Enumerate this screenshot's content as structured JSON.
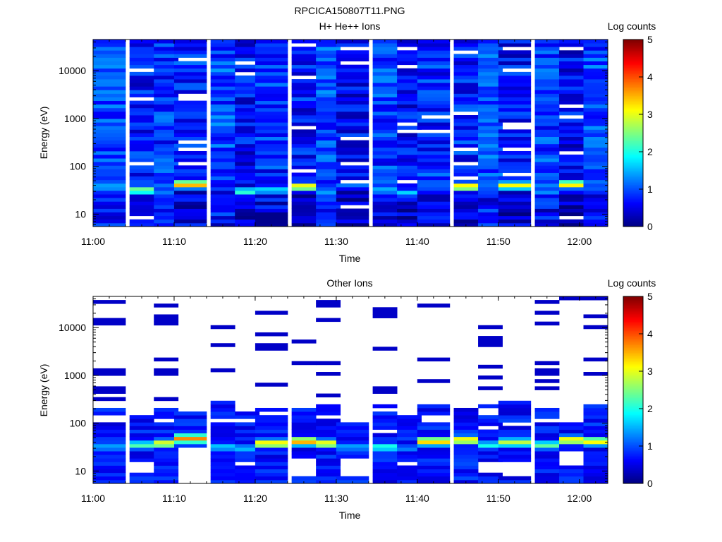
{
  "title": "RPCICA150807T11.PNG",
  "colormap": [
    "#00007f",
    "#0000ff",
    "#007fff",
    "#00ffff",
    "#7fff7f",
    "#ffff00",
    "#ff7f00",
    "#ff0000",
    "#7f0000"
  ],
  "chart_data": [
    {
      "type": "heatmap",
      "title": "H+ He++ Ions",
      "xlabel": "Time",
      "ylabel": "Energy (eV)",
      "x_ticks": [
        "11:00",
        "11:10",
        "11:20",
        "11:30",
        "11:40",
        "11:50",
        "12:00"
      ],
      "y_scale": "log",
      "y_ticks": [
        "10",
        "100",
        "1000",
        "10000"
      ],
      "ylim": [
        5.5,
        45000
      ],
      "colorbar": {
        "label": "Log counts",
        "ticks": [
          "0",
          "1",
          "2",
          "3",
          "4",
          "5"
        ],
        "range": [
          0,
          5
        ]
      },
      "time_bins": [
        "11:02",
        "11:06",
        "11:09",
        "11:12",
        "11:16",
        "11:19",
        "11:22",
        "11:26",
        "11:29",
        "11:32",
        "11:36",
        "11:39",
        "11:42",
        "11:46",
        "11:49",
        "11:52",
        "11:56",
        "11:59",
        "12:02"
      ],
      "columns": [
        {
          "base": 1.0,
          "seed": 11
        },
        {
          "base": 0.7,
          "seed": 23,
          "peak": {
            "energy": 32,
            "value": 2.6
          },
          "gaps": [
            9,
            2800,
            11000,
            105
          ]
        },
        {
          "base": 0.85,
          "seed": 37,
          "peak": {
            "energy": 30,
            "value": 1.3
          }
        },
        {
          "base": 0.75,
          "seed": 41,
          "peak": {
            "energy": 42,
            "value": 3.6
          },
          "gaps": [
            17000,
            3300,
            2700,
            330,
            210,
            110
          ]
        },
        {
          "base": 0.95,
          "seed": 53
        },
        {
          "base": 0.65,
          "seed": 67,
          "peak": {
            "energy": 30,
            "value": 2.2
          },
          "gaps": [
            15000,
            9000
          ]
        },
        {
          "base": 0.8,
          "seed": 71,
          "peak": {
            "energy": 32,
            "value": 1.8
          }
        },
        {
          "base": 0.7,
          "seed": 83,
          "peak": {
            "energy": 38,
            "value": 3.3
          },
          "gaps": [
            36000,
            7500,
            650,
            80
          ]
        },
        {
          "base": 1.0,
          "seed": 97,
          "peak": {
            "energy": 30,
            "value": 1.5
          }
        },
        {
          "base": 0.6,
          "seed": 101,
          "peak": {
            "energy": 40,
            "value": 1.2
          },
          "gaps": [
            30000,
            400,
            105,
            52,
            14000,
            14
          ]
        },
        {
          "base": 0.9,
          "seed": 113,
          "peak": {
            "energy": 32,
            "value": 1.6
          }
        },
        {
          "base": 0.6,
          "seed": 127,
          "peak": {
            "energy": 28,
            "value": 1.7
          },
          "gaps": [
            30000,
            12000,
            800,
            540,
            45
          ]
        },
        {
          "base": 0.8,
          "seed": 131,
          "gaps": [
            1150,
            500
          ]
        },
        {
          "base": 0.75,
          "seed": 149,
          "peak": {
            "energy": 38,
            "value": 3.4
          },
          "gaps": [
            24000,
            1200,
            210,
            110,
            55
          ]
        },
        {
          "base": 0.95,
          "seed": 157,
          "peak": {
            "energy": 32,
            "value": 1.1
          }
        },
        {
          "base": 0.65,
          "seed": 163,
          "peak": {
            "energy": 40,
            "value": 3.1
          },
          "gaps": [
            30000,
            9500,
            800,
            660,
            230,
            65
          ]
        },
        {
          "base": 0.9,
          "seed": 173,
          "peak": {
            "energy": 30,
            "value": 1.4
          }
        },
        {
          "base": 0.6,
          "seed": 181,
          "peak": {
            "energy": 42,
            "value": 3.3
          },
          "gaps": [
            30000,
            1750,
            1150,
            190,
            9
          ]
        },
        {
          "base": 0.95,
          "seed": 191,
          "peak": {
            "energy": 45,
            "value": 1.3
          }
        }
      ]
    },
    {
      "type": "heatmap",
      "title": "Other Ions",
      "xlabel": "Time",
      "ylabel": "Energy (eV)",
      "x_ticks": [
        "11:00",
        "11:10",
        "11:20",
        "11:30",
        "11:40",
        "11:50",
        "12:00"
      ],
      "y_scale": "log",
      "y_ticks": [
        "10",
        "100",
        "1000",
        "10000"
      ],
      "ylim": [
        5.5,
        45000
      ],
      "colorbar": {
        "label": "Log counts",
        "ticks": [
          "0",
          "1",
          "2",
          "3",
          "4",
          "5"
        ],
        "range": [
          0,
          5
        ]
      },
      "time_bins": [
        "11:02",
        "11:06",
        "11:09",
        "11:12",
        "11:16",
        "11:19",
        "11:22",
        "11:26",
        "11:29",
        "11:32",
        "11:36",
        "11:39",
        "11:42",
        "11:46",
        "11:49",
        "11:52",
        "11:56",
        "11:59",
        "12:02"
      ],
      "columns": [
        {
          "seed": 12,
          "peak": {
            "energy": 32,
            "value": 1.5
          },
          "dense_top": 220,
          "lines": [
            34000,
            15000,
            13000,
            1200,
            1100,
            550,
            450,
            330
          ]
        },
        {
          "seed": 24,
          "peak": {
            "energy": 35,
            "value": 2.3
          },
          "dense_top": 160,
          "blank": [
            8.5,
            16
          ]
        },
        {
          "seed": 38,
          "peak": {
            "energy": 38,
            "value": 3.1
          },
          "dense_top": 210,
          "lines": [
            28000,
            17000,
            15000,
            12000,
            2000,
            1200,
            1050,
            330
          ]
        },
        {
          "seed": 42,
          "peak": {
            "energy": 48,
            "value": 3.7
          },
          "dense_top": 190,
          "blank": [
            5.5,
            30
          ]
        },
        {
          "seed": 54,
          "peak": {
            "energy": 32,
            "value": 1.7
          },
          "dense_top": 300,
          "lines": [
            10500,
            4500,
            4100,
            1400
          ]
        },
        {
          "seed": 68,
          "peak": {
            "energy": 30,
            "value": 1.6
          },
          "dense_top": 170,
          "blank": [
            12,
            16
          ]
        },
        {
          "seed": 72,
          "peak": {
            "energy": 38,
            "value": 3.3
          },
          "dense_top": 220,
          "lines": [
            21000,
            7000,
            4500,
            4000,
            3400,
            680
          ]
        },
        {
          "seed": 84,
          "peak": {
            "energy": 42,
            "value": 3.6
          },
          "dense_top": 200,
          "lines": [
            5500,
            1900
          ],
          "blank": [
            8,
            20
          ]
        },
        {
          "seed": 98,
          "peak": {
            "energy": 38,
            "value": 3.2
          },
          "dense_top": 260,
          "lines": [
            34000,
            30000,
            14000,
            1900,
            1050,
            380
          ]
        },
        {
          "seed": 102,
          "peak": {
            "energy": 32,
            "value": 1.5
          },
          "dense_top": 100,
          "blank": [
            8,
            20
          ]
        },
        {
          "seed": 114,
          "peak": {
            "energy": 32,
            "value": 2.1
          },
          "dense_top": 260,
          "lines": [
            23000,
            20000,
            16000,
            3900,
            550,
            450
          ]
        },
        {
          "seed": 128,
          "peak": {
            "energy": 30,
            "value": 1.3
          },
          "dense_top": 140,
          "blank": [
            12,
            16
          ]
        },
        {
          "seed": 132,
          "peak": {
            "energy": 42,
            "value": 3.4
          },
          "dense_top": 230,
          "lines": [
            27000,
            2100,
            720
          ]
        },
        {
          "seed": 150,
          "peak": {
            "energy": 45,
            "value": 3.3
          },
          "dense_top": 300
        },
        {
          "seed": 158,
          "peak": {
            "energy": 35,
            "value": 2.0
          },
          "dense_top": 230,
          "lines": [
            9500,
            6000,
            5500,
            4500,
            1600,
            900,
            550
          ],
          "blank": [
            9,
            16
          ]
        },
        {
          "seed": 164,
          "peak": {
            "energy": 40,
            "value": 2.8
          },
          "dense_top": 280,
          "blank": [
            8,
            16
          ]
        },
        {
          "seed": 174,
          "peak": {
            "energy": 35,
            "value": 2.4
          },
          "dense_top": 200,
          "lines": [
            37000,
            19000,
            12000,
            1900,
            1300,
            1100,
            750,
            500
          ]
        },
        {
          "seed": 182,
          "peak": {
            "energy": 45,
            "value": 3.3
          },
          "dense_top": 110,
          "lines": [
            38000
          ],
          "blank": [
            12,
            25
          ]
        },
        {
          "seed": 192,
          "peak": {
            "energy": 42,
            "value": 3.2
          },
          "dense_top": 240,
          "lines": [
            38000,
            17000,
            11000,
            9500,
            2300,
            1150,
            1000
          ]
        }
      ]
    }
  ]
}
